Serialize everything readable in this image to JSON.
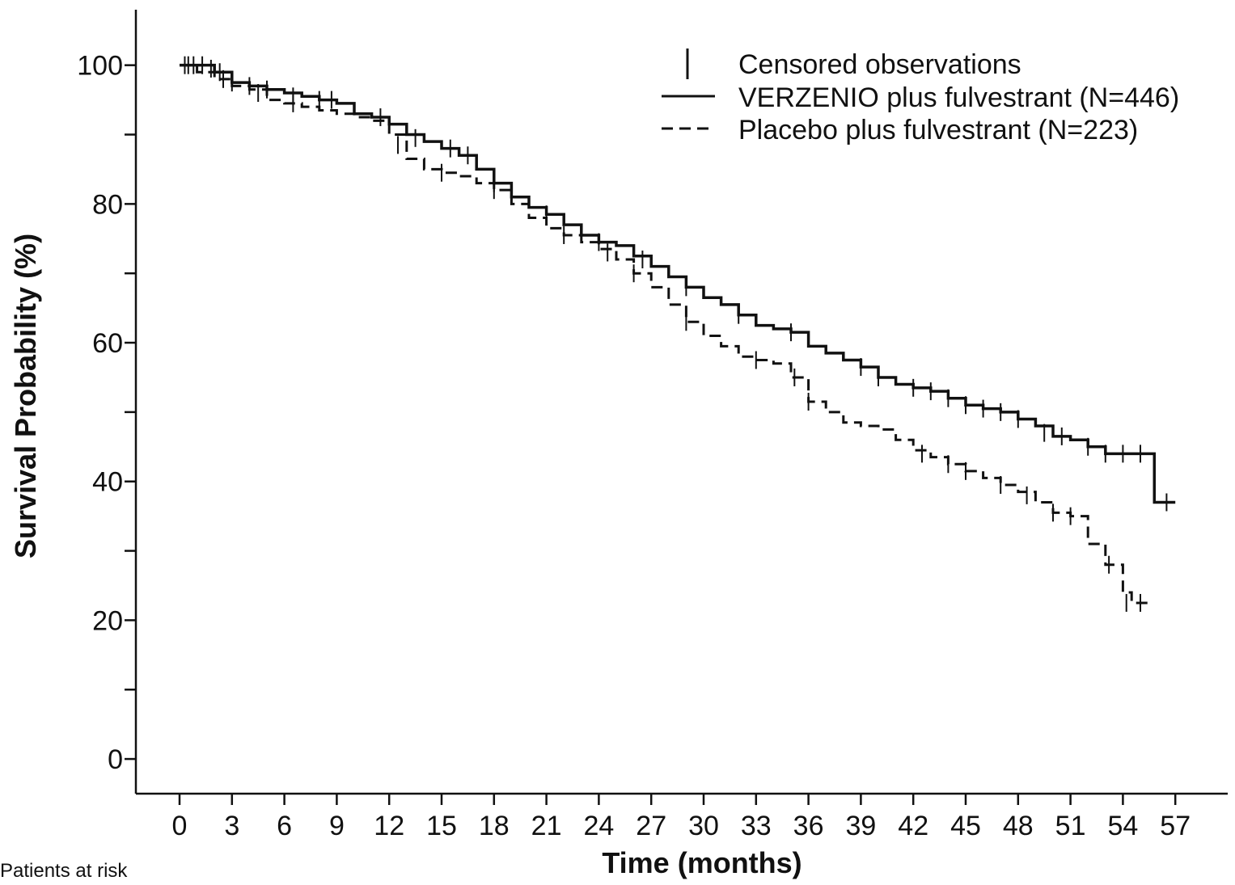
{
  "chart_data": {
    "type": "line",
    "subtype": "kaplan-meier",
    "xlabel": "Time (months)",
    "ylabel": "Survival Probability (%)",
    "xlim": [
      -2.5,
      60
    ],
    "ylim": [
      -5,
      108
    ],
    "x_ticks": [
      0,
      3,
      6,
      9,
      12,
      15,
      18,
      21,
      24,
      27,
      30,
      33,
      36,
      39,
      42,
      45,
      48,
      51,
      54,
      57
    ],
    "y_ticks_major": [
      0,
      20,
      40,
      60,
      80,
      100
    ],
    "y_ticks_minor": [
      10,
      30,
      50,
      70,
      90
    ],
    "grid": false,
    "legend_position": "top-right",
    "legend": {
      "censored_label": "Censored observations",
      "entries": [
        "VERZENIO plus fulvestrant (N=446)",
        "Placebo plus fulvestrant (N=223)"
      ]
    },
    "series": [
      {
        "name": "VERZENIO plus fulvestrant (N=446)",
        "line_style": "solid",
        "color": "#111111",
        "points": [
          [
            0,
            100
          ],
          [
            1,
            100
          ],
          [
            2,
            99
          ],
          [
            3,
            97.5
          ],
          [
            4,
            97
          ],
          [
            5,
            96.5
          ],
          [
            6,
            96
          ],
          [
            7,
            95.5
          ],
          [
            8,
            95
          ],
          [
            9,
            94.5
          ],
          [
            10,
            93
          ],
          [
            11,
            92.5
          ],
          [
            12,
            91.5
          ],
          [
            13,
            90
          ],
          [
            14,
            89
          ],
          [
            15,
            88
          ],
          [
            16,
            87
          ],
          [
            17,
            85
          ],
          [
            18,
            83
          ],
          [
            19,
            81
          ],
          [
            20,
            79.5
          ],
          [
            21,
            78.5
          ],
          [
            22,
            77
          ],
          [
            23,
            75.5
          ],
          [
            24,
            74.5
          ],
          [
            25,
            74
          ],
          [
            26,
            72.5
          ],
          [
            27,
            71
          ],
          [
            28,
            69.5
          ],
          [
            29,
            68
          ],
          [
            30,
            66.5
          ],
          [
            31,
            65.5
          ],
          [
            32,
            64
          ],
          [
            33,
            62.5
          ],
          [
            34,
            62
          ],
          [
            35,
            61.5
          ],
          [
            36,
            59.5
          ],
          [
            37,
            58.5
          ],
          [
            38,
            57.5
          ],
          [
            39,
            56.5
          ],
          [
            40,
            55
          ],
          [
            41,
            54
          ],
          [
            42,
            53.5
          ],
          [
            43,
            53
          ],
          [
            44,
            52
          ],
          [
            45,
            51
          ],
          [
            46,
            50.5
          ],
          [
            47,
            50
          ],
          [
            48,
            49
          ],
          [
            49,
            48
          ],
          [
            50,
            46.5
          ],
          [
            51,
            46
          ],
          [
            52,
            45
          ],
          [
            53,
            44
          ],
          [
            54,
            44
          ],
          [
            55,
            44
          ],
          [
            55.8,
            44
          ],
          [
            55.8,
            37
          ],
          [
            57,
            37
          ]
        ],
        "censored": [
          [
            0.3,
            100
          ],
          [
            0.8,
            100
          ],
          [
            1.3,
            100
          ],
          [
            1.8,
            99.5
          ],
          [
            2.3,
            99
          ],
          [
            3,
            97.5
          ],
          [
            4,
            97
          ],
          [
            5,
            96.5
          ],
          [
            6.5,
            95.5
          ],
          [
            8,
            95
          ],
          [
            8.7,
            95
          ],
          [
            11.5,
            92.5
          ],
          [
            13.5,
            89.5
          ],
          [
            15.5,
            88
          ],
          [
            16.5,
            87
          ],
          [
            18,
            83
          ],
          [
            21,
            78.5
          ],
          [
            24,
            74.5
          ],
          [
            26.5,
            72
          ],
          [
            29,
            68
          ],
          [
            32,
            64
          ],
          [
            35,
            61.5
          ],
          [
            39,
            56.5
          ],
          [
            40,
            55
          ],
          [
            42,
            53.5
          ],
          [
            43,
            53
          ],
          [
            44,
            52
          ],
          [
            45,
            51
          ],
          [
            46,
            50.5
          ],
          [
            47,
            50
          ],
          [
            48,
            49
          ],
          [
            49.5,
            47
          ],
          [
            50.5,
            46.5
          ],
          [
            52,
            45
          ],
          [
            53,
            44
          ],
          [
            54,
            44
          ],
          [
            55,
            44
          ],
          [
            56.5,
            37
          ]
        ]
      },
      {
        "name": "Placebo plus fulvestrant (N=223)",
        "line_style": "dashed",
        "color": "#111111",
        "points": [
          [
            0,
            100
          ],
          [
            1,
            99
          ],
          [
            2,
            98
          ],
          [
            3,
            97
          ],
          [
            4,
            96.5
          ],
          [
            5,
            95
          ],
          [
            6,
            94.5
          ],
          [
            7,
            94
          ],
          [
            8,
            93.5
          ],
          [
            9,
            93
          ],
          [
            10,
            92.5
          ],
          [
            11,
            92
          ],
          [
            12,
            90
          ],
          [
            13,
            86.5
          ],
          [
            14,
            85
          ],
          [
            15,
            84.5
          ],
          [
            16,
            84
          ],
          [
            17,
            83
          ],
          [
            18,
            82
          ],
          [
            19,
            80
          ],
          [
            20,
            78
          ],
          [
            21,
            76.5
          ],
          [
            22,
            75.5
          ],
          [
            23,
            74.5
          ],
          [
            24,
            73.5
          ],
          [
            25,
            72
          ],
          [
            26,
            70
          ],
          [
            27,
            68
          ],
          [
            28,
            65.5
          ],
          [
            29,
            63
          ],
          [
            30,
            61
          ],
          [
            31,
            59.5
          ],
          [
            32,
            58
          ],
          [
            33,
            57.5
          ],
          [
            34,
            57
          ],
          [
            35,
            55
          ],
          [
            36,
            51.5
          ],
          [
            37,
            50
          ],
          [
            38,
            48.5
          ],
          [
            39,
            48
          ],
          [
            40,
            47.5
          ],
          [
            41,
            46
          ],
          [
            42,
            44.5
          ],
          [
            43,
            43.5
          ],
          [
            44,
            42.5
          ],
          [
            45,
            41.5
          ],
          [
            46,
            40.5
          ],
          [
            47,
            39.5
          ],
          [
            48,
            38.5
          ],
          [
            49,
            37
          ],
          [
            50,
            35.5
          ],
          [
            51,
            35
          ],
          [
            51.5,
            35
          ],
          [
            52,
            31
          ],
          [
            53,
            28
          ],
          [
            54,
            24
          ],
          [
            54.5,
            22.5
          ],
          [
            55.5,
            22.5
          ]
        ],
        "censored": [
          [
            0.5,
            100
          ],
          [
            2.5,
            98
          ],
          [
            4.5,
            96
          ],
          [
            6.5,
            94.5
          ],
          [
            12.5,
            88.5
          ],
          [
            15,
            84.5
          ],
          [
            18,
            82
          ],
          [
            22,
            75.5
          ],
          [
            24.5,
            73
          ],
          [
            26,
            70
          ],
          [
            29,
            63
          ],
          [
            33,
            57.5
          ],
          [
            35.2,
            55
          ],
          [
            36,
            51.5
          ],
          [
            42.5,
            44
          ],
          [
            44,
            42.5
          ],
          [
            45,
            41.5
          ],
          [
            47,
            39.5
          ],
          [
            48.5,
            38
          ],
          [
            50,
            35.5
          ],
          [
            51,
            35
          ],
          [
            53.2,
            28
          ],
          [
            54.2,
            22.5
          ],
          [
            55,
            22.5
          ]
        ]
      }
    ],
    "footnote": "Patients at risk"
  }
}
